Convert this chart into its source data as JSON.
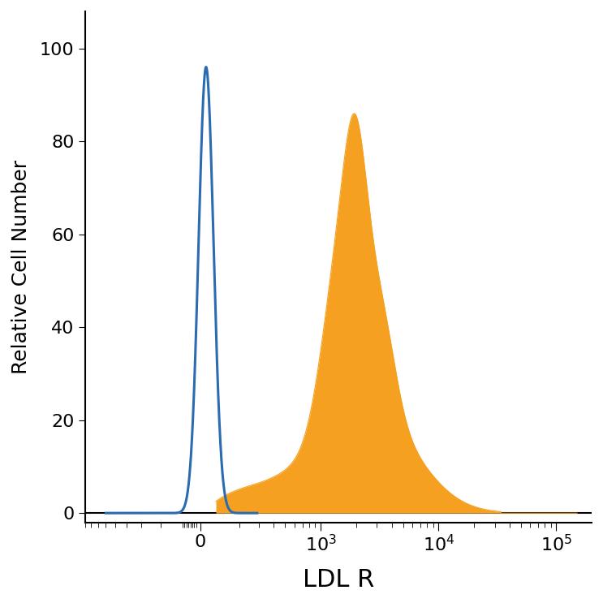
{
  "title": "",
  "xlabel": "LDL R",
  "ylabel": "Relative Cell Number",
  "ylim": [
    -2,
    108
  ],
  "blue_color": "#2B6CB0",
  "orange_color": "#F5A020",
  "background_color": "#FFFFFF",
  "xlabel_fontsize": 22,
  "ylabel_fontsize": 18,
  "tick_fontsize": 16,
  "figsize": [
    7.43,
    7.43
  ],
  "dpi": 100,
  "linthresh": 300,
  "linscale": 0.45
}
